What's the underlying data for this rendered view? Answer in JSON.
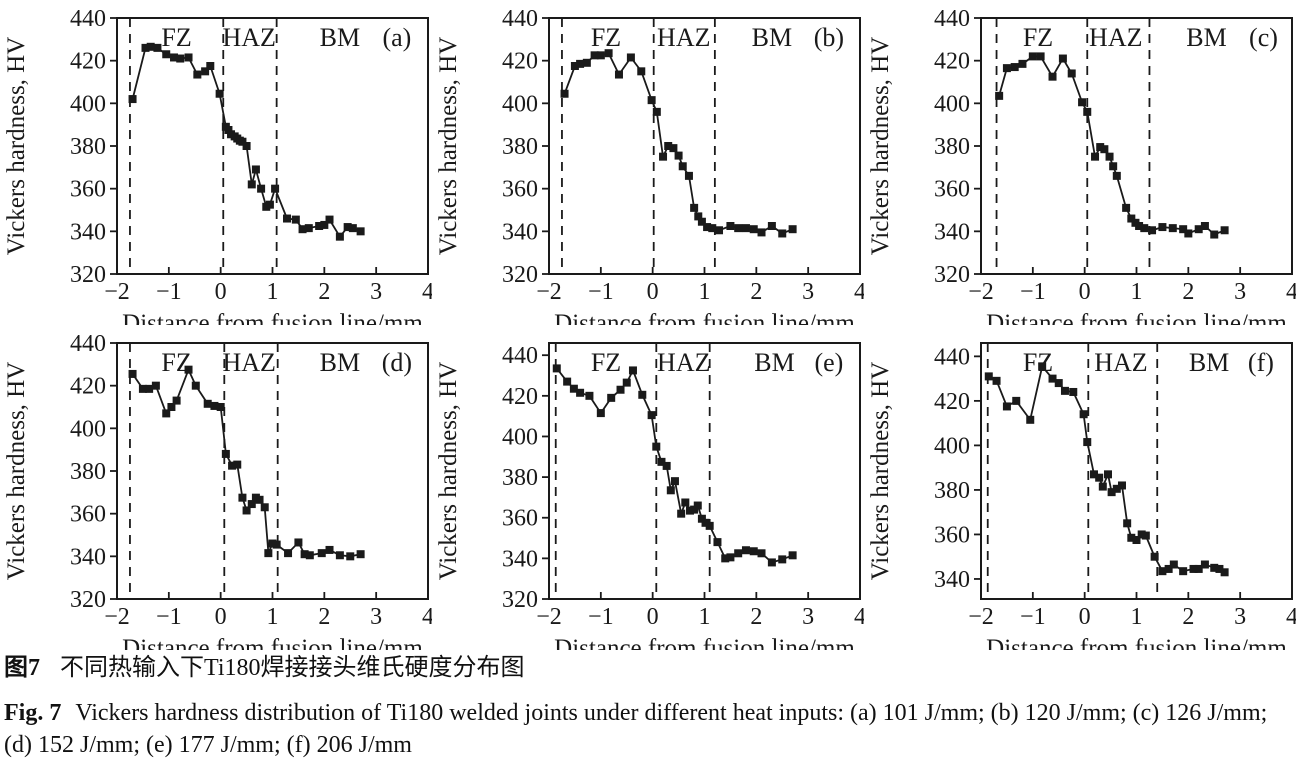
{
  "figure": {
    "caption_zh_label": "图7",
    "caption_zh_text": "不同热输入下Ti180焊接接头维氏硬度分布图",
    "caption_en_label": "Fig. 7",
    "caption_en_text": "Vickers hardness distribution of Ti180 welded joints under different heat inputs: (a) 101 J/mm; (b) 120 J/mm; (c) 126 J/mm; (d) 152 J/mm; (e) 177 J/mm; (f) 206 J/mm",
    "line_color": "#1a1a1a",
    "marker": "filled-square"
  },
  "chart_data": [
    {
      "type": "line",
      "panel_label": "(a)",
      "heat_input": "101 J/mm",
      "xlabel": "Distance from fusion line/mm",
      "ylabel": "Vickers hardness, HV",
      "xlim": [
        -2,
        4
      ],
      "ylim": [
        320,
        440
      ],
      "xticks": [
        -2,
        -1,
        0,
        1,
        2,
        3,
        4
      ],
      "yticks": [
        320,
        340,
        360,
        380,
        400,
        420,
        440
      ],
      "dashed_lines_x": [
        -1.75,
        0.05,
        1.08
      ],
      "zones": [
        {
          "label": "FZ",
          "x": -0.85
        },
        {
          "label": "HAZ",
          "x": 0.55
        },
        {
          "label": "BM",
          "x": 2.3
        }
      ],
      "panel_label_x": 3.4,
      "points": [
        [
          -1.7,
          402
        ],
        [
          -1.45,
          426
        ],
        [
          -1.35,
          426.5
        ],
        [
          -1.22,
          426
        ],
        [
          -1.05,
          423
        ],
        [
          -0.9,
          421.5
        ],
        [
          -0.78,
          421
        ],
        [
          -0.62,
          421.5
        ],
        [
          -0.45,
          413.5
        ],
        [
          -0.3,
          415
        ],
        [
          -0.2,
          417.5
        ],
        [
          -0.02,
          404.5
        ],
        [
          0.1,
          389
        ],
        [
          0.15,
          387.5
        ],
        [
          0.2,
          385.5
        ],
        [
          0.27,
          384.5
        ],
        [
          0.32,
          383.5
        ],
        [
          0.37,
          382.5
        ],
        [
          0.42,
          382
        ],
        [
          0.5,
          380
        ],
        [
          0.6,
          362
        ],
        [
          0.68,
          369
        ],
        [
          0.78,
          360
        ],
        [
          0.88,
          351.5
        ],
        [
          0.95,
          352.5
        ],
        [
          1.05,
          360
        ],
        [
          1.28,
          346
        ],
        [
          1.45,
          345.5
        ],
        [
          1.58,
          341
        ],
        [
          1.7,
          341.5
        ],
        [
          1.9,
          342.5
        ],
        [
          2.0,
          343
        ],
        [
          2.1,
          345.5
        ],
        [
          2.3,
          337.5
        ],
        [
          2.45,
          342
        ],
        [
          2.55,
          341.5
        ],
        [
          2.7,
          340
        ]
      ]
    },
    {
      "type": "line",
      "panel_label": "(b)",
      "heat_input": "120 J/mm",
      "xlabel": "Distance from fusion line/mm",
      "ylabel": "Vickers hardness, HV",
      "xlim": [
        -2,
        4
      ],
      "ylim": [
        320,
        440
      ],
      "xticks": [
        -2,
        -1,
        0,
        1,
        2,
        3,
        4
      ],
      "yticks": [
        320,
        340,
        360,
        380,
        400,
        420,
        440
      ],
      "dashed_lines_x": [
        -1.75,
        0.02,
        1.2
      ],
      "zones": [
        {
          "label": "FZ",
          "x": -0.9
        },
        {
          "label": "HAZ",
          "x": 0.6
        },
        {
          "label": "BM",
          "x": 2.3
        }
      ],
      "panel_label_x": 3.4,
      "points": [
        [
          -1.7,
          404.5
        ],
        [
          -1.5,
          417.5
        ],
        [
          -1.4,
          418.5
        ],
        [
          -1.27,
          419
        ],
        [
          -1.12,
          422.5
        ],
        [
          -1.0,
          422.5
        ],
        [
          -0.85,
          423.5
        ],
        [
          -0.65,
          413.5
        ],
        [
          -0.42,
          421.5
        ],
        [
          -0.22,
          415
        ],
        [
          -0.02,
          401.5
        ],
        [
          0.08,
          396
        ],
        [
          0.2,
          375
        ],
        [
          0.3,
          380
        ],
        [
          0.4,
          379
        ],
        [
          0.5,
          375.5
        ],
        [
          0.58,
          370.5
        ],
        [
          0.7,
          366
        ],
        [
          0.8,
          351
        ],
        [
          0.88,
          347
        ],
        [
          0.95,
          344.5
        ],
        [
          1.05,
          342
        ],
        [
          1.15,
          341.5
        ],
        [
          1.28,
          340.5
        ],
        [
          1.5,
          342.5
        ],
        [
          1.65,
          341.5
        ],
        [
          1.8,
          341.5
        ],
        [
          1.95,
          341
        ],
        [
          2.1,
          339.5
        ],
        [
          2.3,
          342.5
        ],
        [
          2.5,
          339
        ],
        [
          2.7,
          341
        ]
      ]
    },
    {
      "type": "line",
      "panel_label": "(c)",
      "heat_input": "126 J/mm",
      "xlabel": "Distance from fusion line/mm",
      "ylabel": "Vickers hardness, HV",
      "xlim": [
        -2,
        4
      ],
      "ylim": [
        320,
        440
      ],
      "xticks": [
        -2,
        -1,
        0,
        1,
        2,
        3,
        4
      ],
      "yticks": [
        320,
        340,
        360,
        380,
        400,
        420,
        440
      ],
      "dashed_lines_x": [
        -1.7,
        0.05,
        1.25
      ],
      "zones": [
        {
          "label": "FZ",
          "x": -0.9
        },
        {
          "label": "HAZ",
          "x": 0.6
        },
        {
          "label": "BM",
          "x": 2.35
        }
      ],
      "panel_label_x": 3.45,
      "points": [
        [
          -1.65,
          403.5
        ],
        [
          -1.5,
          416.5
        ],
        [
          -1.35,
          417
        ],
        [
          -1.2,
          418.5
        ],
        [
          -1.0,
          422
        ],
        [
          -0.85,
          422
        ],
        [
          -0.62,
          412.5
        ],
        [
          -0.42,
          421
        ],
        [
          -0.25,
          414
        ],
        [
          -0.05,
          400.5
        ],
        [
          0.05,
          396
        ],
        [
          0.2,
          375
        ],
        [
          0.3,
          379.5
        ],
        [
          0.38,
          378.5
        ],
        [
          0.48,
          375
        ],
        [
          0.55,
          370.5
        ],
        [
          0.62,
          366
        ],
        [
          0.8,
          351
        ],
        [
          0.9,
          346
        ],
        [
          0.98,
          344
        ],
        [
          1.05,
          342.5
        ],
        [
          1.15,
          341.5
        ],
        [
          1.3,
          340.5
        ],
        [
          1.5,
          342
        ],
        [
          1.7,
          341.5
        ],
        [
          1.9,
          341
        ],
        [
          2.0,
          339
        ],
        [
          2.2,
          341
        ],
        [
          2.32,
          342.5
        ],
        [
          2.5,
          338.5
        ],
        [
          2.7,
          340.5
        ]
      ]
    },
    {
      "type": "line",
      "panel_label": "(d)",
      "heat_input": "152 J/mm",
      "xlabel": "Distance from fusion line/mm",
      "ylabel": "Vickers hardness, HV",
      "xlim": [
        -2,
        4
      ],
      "ylim": [
        320,
        440
      ],
      "xticks": [
        -2,
        -1,
        0,
        1,
        2,
        3,
        4
      ],
      "yticks": [
        320,
        340,
        360,
        380,
        400,
        420,
        440
      ],
      "dashed_lines_x": [
        -1.75,
        0.07,
        1.1
      ],
      "zones": [
        {
          "label": "FZ",
          "x": -0.85
        },
        {
          "label": "HAZ",
          "x": 0.55
        },
        {
          "label": "BM",
          "x": 2.3
        }
      ],
      "panel_label_x": 3.4,
      "points": [
        [
          -1.7,
          425.5
        ],
        [
          -1.5,
          418.5
        ],
        [
          -1.38,
          418.5
        ],
        [
          -1.25,
          420
        ],
        [
          -1.05,
          407
        ],
        [
          -0.95,
          410
        ],
        [
          -0.85,
          413
        ],
        [
          -0.62,
          427.5
        ],
        [
          -0.48,
          420
        ],
        [
          -0.25,
          411.5
        ],
        [
          -0.12,
          410.5
        ],
        [
          0.0,
          410
        ],
        [
          0.1,
          388
        ],
        [
          0.22,
          382.5
        ],
        [
          0.32,
          383
        ],
        [
          0.42,
          367.5
        ],
        [
          0.5,
          361.5
        ],
        [
          0.6,
          364.5
        ],
        [
          0.68,
          367.5
        ],
        [
          0.75,
          366.5
        ],
        [
          0.85,
          363
        ],
        [
          0.92,
          341.5
        ],
        [
          1.0,
          346
        ],
        [
          1.08,
          345.5
        ],
        [
          1.3,
          341.5
        ],
        [
          1.5,
          346.5
        ],
        [
          1.62,
          341
        ],
        [
          1.72,
          340.5
        ],
        [
          1.95,
          341.5
        ],
        [
          2.1,
          343
        ],
        [
          2.3,
          340.5
        ],
        [
          2.5,
          340
        ],
        [
          2.7,
          341
        ]
      ]
    },
    {
      "type": "line",
      "panel_label": "(e)",
      "heat_input": "177 J/mm",
      "xlabel": "Distance from fusion line/mm",
      "ylabel": "Vickers hardness, HV",
      "xlim": [
        -2,
        4
      ],
      "ylim": [
        320,
        446
      ],
      "xticks": [
        -2,
        -1,
        0,
        1,
        2,
        3,
        4
      ],
      "yticks": [
        320,
        340,
        360,
        380,
        400,
        420,
        440
      ],
      "dashed_lines_x": [
        -1.87,
        0.07,
        1.1
      ],
      "zones": [
        {
          "label": "FZ",
          "x": -0.9
        },
        {
          "label": "HAZ",
          "x": 0.6
        },
        {
          "label": "BM",
          "x": 2.35
        }
      ],
      "panel_label_x": 3.4,
      "points": [
        [
          -1.85,
          433.5
        ],
        [
          -1.65,
          427
        ],
        [
          -1.52,
          423.5
        ],
        [
          -1.4,
          421.5
        ],
        [
          -1.22,
          420
        ],
        [
          -1.0,
          411.5
        ],
        [
          -0.8,
          419
        ],
        [
          -0.62,
          423
        ],
        [
          -0.5,
          426.5
        ],
        [
          -0.38,
          432.5
        ],
        [
          -0.2,
          420.5
        ],
        [
          -0.02,
          410.5
        ],
        [
          0.07,
          395
        ],
        [
          0.17,
          387.5
        ],
        [
          0.27,
          385.5
        ],
        [
          0.35,
          373.5
        ],
        [
          0.43,
          378
        ],
        [
          0.55,
          362
        ],
        [
          0.63,
          367.5
        ],
        [
          0.72,
          363.5
        ],
        [
          0.8,
          364
        ],
        [
          0.87,
          366
        ],
        [
          0.95,
          359.5
        ],
        [
          1.02,
          357.5
        ],
        [
          1.1,
          356
        ],
        [
          1.25,
          348
        ],
        [
          1.4,
          340
        ],
        [
          1.5,
          340.5
        ],
        [
          1.65,
          342.5
        ],
        [
          1.8,
          344
        ],
        [
          1.95,
          343.5
        ],
        [
          2.1,
          342.5
        ],
        [
          2.3,
          338
        ],
        [
          2.5,
          339.5
        ],
        [
          2.7,
          341.5
        ]
      ]
    },
    {
      "type": "line",
      "panel_label": "(f)",
      "heat_input": "206 J/mm",
      "xlabel": "Distance from fusion line/mm",
      "ylabel": "Vickers hardness, HV",
      "xlim": [
        -2,
        4
      ],
      "ylim": [
        331,
        446
      ],
      "xticks": [
        -2,
        -1,
        0,
        1,
        2,
        3,
        4
      ],
      "yticks": [
        340,
        360,
        380,
        400,
        420,
        440
      ],
      "dashed_lines_x": [
        -1.87,
        0.07,
        1.4
      ],
      "zones": [
        {
          "label": "FZ",
          "x": -0.9
        },
        {
          "label": "HAZ",
          "x": 0.7
        },
        {
          "label": "BM",
          "x": 2.4
        }
      ],
      "panel_label_x": 3.4,
      "points": [
        [
          -1.85,
          431
        ],
        [
          -1.7,
          429
        ],
        [
          -1.5,
          417.5
        ],
        [
          -1.32,
          420
        ],
        [
          -1.05,
          411.5
        ],
        [
          -0.82,
          435.5
        ],
        [
          -0.62,
          430
        ],
        [
          -0.5,
          428
        ],
        [
          -0.38,
          424.5
        ],
        [
          -0.22,
          424
        ],
        [
          -0.02,
          414
        ],
        [
          0.05,
          401.5
        ],
        [
          0.18,
          387
        ],
        [
          0.28,
          385.5
        ],
        [
          0.35,
          381.5
        ],
        [
          0.45,
          387
        ],
        [
          0.52,
          379
        ],
        [
          0.62,
          380.5
        ],
        [
          0.72,
          382
        ],
        [
          0.82,
          365
        ],
        [
          0.9,
          358.5
        ],
        [
          1.0,
          357.5
        ],
        [
          1.1,
          360
        ],
        [
          1.18,
          359.5
        ],
        [
          1.35,
          350
        ],
        [
          1.5,
          343.5
        ],
        [
          1.62,
          344.5
        ],
        [
          1.72,
          346.5
        ],
        [
          1.9,
          343.5
        ],
        [
          2.1,
          344.5
        ],
        [
          2.2,
          344.5
        ],
        [
          2.32,
          346.5
        ],
        [
          2.5,
          345
        ],
        [
          2.6,
          344.5
        ],
        [
          2.7,
          343
        ]
      ]
    }
  ]
}
